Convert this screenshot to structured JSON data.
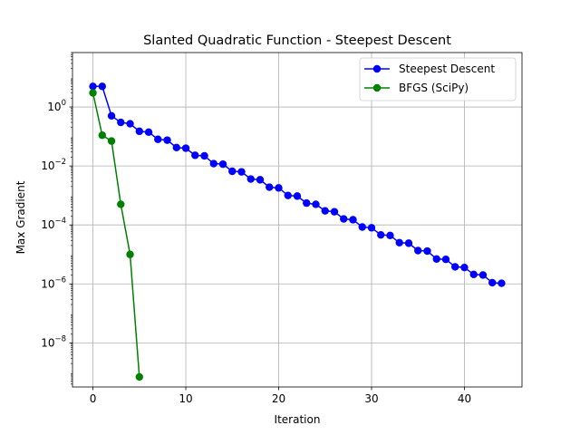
{
  "chart_data": {
    "type": "line",
    "title": "Slanted Quadratic Function - Steepest Descent",
    "xlabel": "Iteration",
    "ylabel": "Max Gradient",
    "yscale": "log",
    "xlim": [
      -2.2,
      46.2
    ],
    "ylim": [
      3.2e-10,
      70
    ],
    "x_ticks": [
      0,
      10,
      20,
      30,
      40
    ],
    "x_tick_labels": [
      "0",
      "10",
      "20",
      "30",
      "40"
    ],
    "y_ticks": [
      1e-08,
      1e-06,
      0.0001,
      0.01,
      1
    ],
    "y_tick_labels": [
      {
        "base": "10",
        "exp": "−8"
      },
      {
        "base": "10",
        "exp": "−6"
      },
      {
        "base": "10",
        "exp": "−4"
      },
      {
        "base": "10",
        "exp": "−2"
      },
      {
        "base": "10",
        "exp": "0"
      }
    ],
    "grid": true,
    "legend_position": "top-right",
    "series": [
      {
        "name": "Steepest Descent",
        "color": "#0000ff",
        "marker": "circle",
        "x": [
          0,
          1,
          2,
          3,
          4,
          5,
          6,
          7,
          8,
          9,
          10,
          11,
          12,
          13,
          14,
          15,
          16,
          17,
          18,
          19,
          20,
          21,
          22,
          23,
          24,
          25,
          26,
          27,
          28,
          29,
          30,
          31,
          32,
          33,
          34,
          35,
          36,
          37,
          38,
          39,
          40,
          41,
          42,
          43,
          44
        ],
        "values": [
          5.0,
          5.0,
          0.5,
          0.3,
          0.27,
          0.15,
          0.14,
          0.08,
          0.075,
          0.042,
          0.04,
          0.023,
          0.022,
          0.012,
          0.0115,
          0.0066,
          0.0063,
          0.0036,
          0.0034,
          0.0019,
          0.0018,
          0.001,
          0.00095,
          0.00055,
          0.0005,
          0.0003,
          0.00028,
          0.00016,
          0.00015,
          8.5e-05,
          8e-05,
          4.6e-05,
          4.4e-05,
          2.5e-05,
          2.4e-05,
          1.35e-05,
          1.3e-05,
          7e-06,
          6.8e-06,
          3.8e-06,
          3.6e-06,
          2.1e-06,
          2e-06,
          1.1e-06,
          1.05e-06
        ]
      },
      {
        "name": "BFGS (SciPy)",
        "color": "#008000",
        "marker": "circle",
        "x": [
          0,
          1,
          2,
          3,
          4,
          5
        ],
        "values": [
          3.0,
          0.11,
          0.07,
          0.0005,
          1e-05,
          7e-10
        ]
      }
    ]
  }
}
